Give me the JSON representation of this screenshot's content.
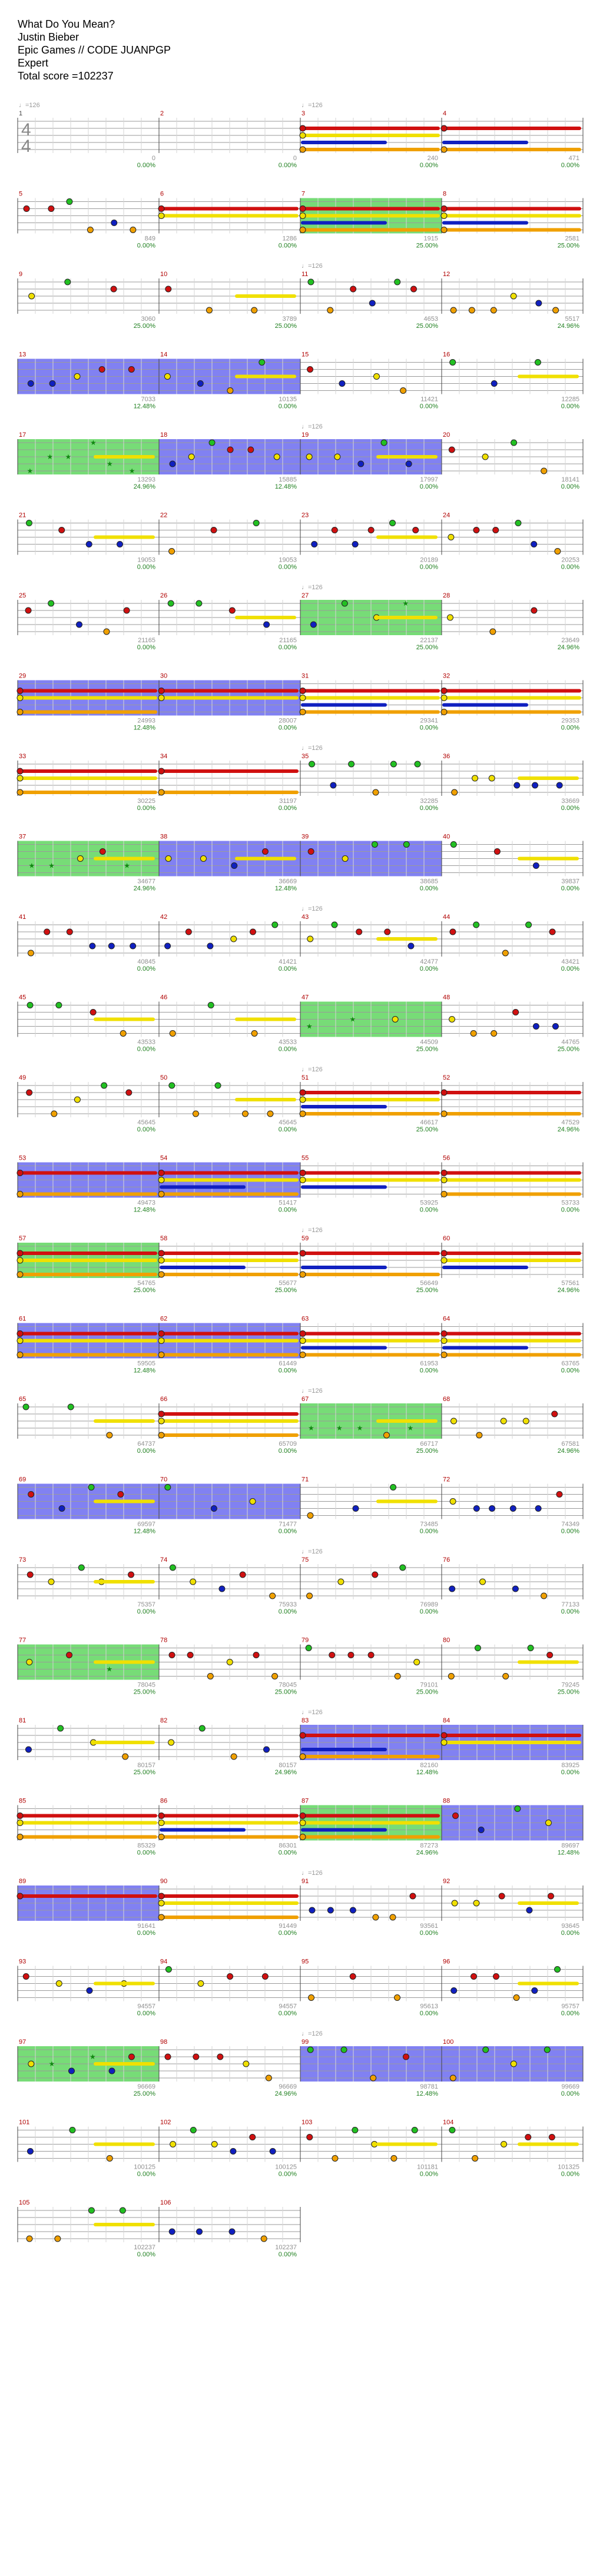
{
  "song": {
    "title": "What Do You Mean?",
    "artist": "Justin Bieber",
    "album": "Epic Games // CODE JUANPGP",
    "difficulty": "Expert",
    "total_score_label": "Total score =",
    "total_score": "102237"
  },
  "time_signature": {
    "numerator": "4",
    "denominator": "4"
  },
  "tempo_marker": "♩=126",
  "colors": {
    "green": "#22c022",
    "red": "#d01010",
    "yellow": "#f0e000",
    "blue": "#1020c0",
    "orange": "#f0a000",
    "overdrive": "#5fd65f",
    "solo": "#6b6bf0",
    "measure_number": "#b00000",
    "score": "#909090",
    "percent": "#208020"
  },
  "measures": [
    {
      "n": "1",
      "s": "0",
      "p": "0.00%"
    },
    {
      "n": "2",
      "s": "0",
      "p": "0.00%"
    },
    {
      "n": "3",
      "s": "240",
      "p": "0.00%"
    },
    {
      "n": "4",
      "s": "471",
      "p": "0.00%"
    },
    {
      "n": "5",
      "s": "849",
      "p": "0.00%"
    },
    {
      "n": "6",
      "s": "1286",
      "p": "0.00%"
    },
    {
      "n": "7",
      "s": "1915",
      "p": "25.00%"
    },
    {
      "n": "8",
      "s": "2581",
      "p": "25.00%"
    },
    {
      "n": "9",
      "s": "3060",
      "p": "25.00%"
    },
    {
      "n": "10",
      "s": "3789",
      "p": "25.00%"
    },
    {
      "n": "11",
      "s": "4653",
      "p": "25.00%"
    },
    {
      "n": "12",
      "s": "5517",
      "p": "24.96%"
    },
    {
      "n": "13",
      "s": "7033",
      "p": "12.48%"
    },
    {
      "n": "14",
      "s": "10135",
      "p": "0.00%"
    },
    {
      "n": "15",
      "s": "11421",
      "p": "0.00%"
    },
    {
      "n": "16",
      "s": "12285",
      "p": "0.00%"
    },
    {
      "n": "17",
      "s": "13293",
      "p": "24.96%"
    },
    {
      "n": "18",
      "s": "15885",
      "p": "12.48%"
    },
    {
      "n": "19",
      "s": "17997",
      "p": "0.00%"
    },
    {
      "n": "20",
      "s": "18141",
      "p": "0.00%"
    },
    {
      "n": "21",
      "s": "19053",
      "p": "0.00%"
    },
    {
      "n": "22",
      "s": "19053",
      "p": "0.00%"
    },
    {
      "n": "23",
      "s": "20189",
      "p": "0.00%"
    },
    {
      "n": "24",
      "s": "20253",
      "p": "0.00%"
    },
    {
      "n": "25",
      "s": "21165",
      "p": "0.00%"
    },
    {
      "n": "26",
      "s": "21165",
      "p": "0.00%"
    },
    {
      "n": "27",
      "s": "22137",
      "p": "25.00%"
    },
    {
      "n": "28",
      "s": "23649",
      "p": "24.96%"
    },
    {
      "n": "29",
      "s": "24993",
      "p": "12.48%"
    },
    {
      "n": "30",
      "s": "28007",
      "p": "0.00%"
    },
    {
      "n": "31",
      "s": "29341",
      "p": "0.00%"
    },
    {
      "n": "32",
      "s": "29353",
      "p": "0.00%"
    },
    {
      "n": "33",
      "s": "30225",
      "p": "0.00%"
    },
    {
      "n": "34",
      "s": "31197",
      "p": "0.00%"
    },
    {
      "n": "35",
      "s": "32285",
      "p": "0.00%"
    },
    {
      "n": "36",
      "s": "33669",
      "p": "0.00%"
    },
    {
      "n": "37",
      "s": "34677",
      "p": "24.96%"
    },
    {
      "n": "38",
      "s": "36669",
      "p": "12.48%"
    },
    {
      "n": "39",
      "s": "38685",
      "p": "0.00%"
    },
    {
      "n": "40",
      "s": "39837",
      "p": "0.00%"
    },
    {
      "n": "41",
      "s": "40845",
      "p": "0.00%"
    },
    {
      "n": "42",
      "s": "41421",
      "p": "0.00%"
    },
    {
      "n": "43",
      "s": "42477",
      "p": "0.00%"
    },
    {
      "n": "44",
      "s": "43421",
      "p": "0.00%"
    },
    {
      "n": "45",
      "s": "43533",
      "p": "0.00%"
    },
    {
      "n": "46",
      "s": "43533",
      "p": "0.00%"
    },
    {
      "n": "47",
      "s": "44509",
      "p": "25.00%"
    },
    {
      "n": "48",
      "s": "44765",
      "p": "25.00%"
    },
    {
      "n": "49",
      "s": "45645",
      "p": "0.00%"
    },
    {
      "n": "50",
      "s": "45645",
      "p": "0.00%"
    },
    {
      "n": "51",
      "s": "46617",
      "p": "25.00%"
    },
    {
      "n": "52",
      "s": "47529",
      "p": "24.96%"
    },
    {
      "n": "53",
      "s": "49473",
      "p": "12.48%"
    },
    {
      "n": "54",
      "s": "51417",
      "p": "0.00%"
    },
    {
      "n": "55",
      "s": "53925",
      "p": "0.00%"
    },
    {
      "n": "56",
      "s": "53733",
      "p": "0.00%"
    },
    {
      "n": "57",
      "s": "54765",
      "p": "25.00%"
    },
    {
      "n": "58",
      "s": "55677",
      "p": "25.00%"
    },
    {
      "n": "59",
      "s": "56649",
      "p": "25.00%"
    },
    {
      "n": "60",
      "s": "57561",
      "p": "24.96%"
    },
    {
      "n": "61",
      "s": "59505",
      "p": "12.48%"
    },
    {
      "n": "62",
      "s": "61449",
      "p": "0.00%"
    },
    {
      "n": "63",
      "s": "61953",
      "p": "0.00%"
    },
    {
      "n": "64",
      "s": "63765",
      "p": "0.00%"
    },
    {
      "n": "65",
      "s": "64737",
      "p": "0.00%"
    },
    {
      "n": "66",
      "s": "65709",
      "p": "0.00%"
    },
    {
      "n": "67",
      "s": "66717",
      "p": "25.00%"
    },
    {
      "n": "68",
      "s": "67581",
      "p": "24.96%"
    },
    {
      "n": "69",
      "s": "69597",
      "p": "12.48%"
    },
    {
      "n": "70",
      "s": "71477",
      "p": "0.00%"
    },
    {
      "n": "71",
      "s": "73485",
      "p": "0.00%"
    },
    {
      "n": "72",
      "s": "74349",
      "p": "0.00%"
    },
    {
      "n": "73",
      "s": "75357",
      "p": "0.00%"
    },
    {
      "n": "74",
      "s": "75933",
      "p": "0.00%"
    },
    {
      "n": "75",
      "s": "76989",
      "p": "0.00%"
    },
    {
      "n": "76",
      "s": "77133",
      "p": "0.00%"
    },
    {
      "n": "77",
      "s": "78045",
      "p": "25.00%"
    },
    {
      "n": "78",
      "s": "78045",
      "p": "25.00%"
    },
    {
      "n": "79",
      "s": "79101",
      "p": "25.00%"
    },
    {
      "n": "80",
      "s": "79245",
      "p": "25.00%"
    },
    {
      "n": "81",
      "s": "80157",
      "p": "25.00%"
    },
    {
      "n": "82",
      "s": "80157",
      "p": "24.96%"
    },
    {
      "n": "83",
      "s": "82160",
      "p": "12.48%"
    },
    {
      "n": "84",
      "s": "83925",
      "p": "0.00%"
    },
    {
      "n": "85",
      "s": "85329",
      "p": "0.00%"
    },
    {
      "n": "86",
      "s": "86301",
      "p": "0.00%"
    },
    {
      "n": "87",
      "s": "87273",
      "p": "24.96%"
    },
    {
      "n": "88",
      "s": "89697",
      "p": "12.48%"
    },
    {
      "n": "89",
      "s": "91641",
      "p": "0.00%"
    },
    {
      "n": "90",
      "s": "91449",
      "p": "0.00%"
    },
    {
      "n": "91",
      "s": "93561",
      "p": "0.00%"
    },
    {
      "n": "92",
      "s": "93645",
      "p": "0.00%"
    },
    {
      "n": "93",
      "s": "94557",
      "p": "0.00%"
    },
    {
      "n": "94",
      "s": "94557",
      "p": "0.00%"
    },
    {
      "n": "95",
      "s": "95613",
      "p": "0.00%"
    },
    {
      "n": "96",
      "s": "95757",
      "p": "0.00%"
    },
    {
      "n": "97",
      "s": "96669",
      "p": "25.00%"
    },
    {
      "n": "98",
      "s": "96669",
      "p": "24.96%"
    },
    {
      "n": "99",
      "s": "98781",
      "p": "12.48%"
    },
    {
      "n": "100",
      "s": "99669",
      "p": "0.00%"
    },
    {
      "n": "101",
      "s": "100125",
      "p": "0.00%"
    },
    {
      "n": "102",
      "s": "100125",
      "p": "0.00%"
    },
    {
      "n": "103",
      "s": "101181",
      "p": "0.00%"
    },
    {
      "n": "104",
      "s": "101325",
      "p": "0.00%"
    },
    {
      "n": "105",
      "s": "102237",
      "p": "0.00%"
    },
    {
      "n": "106",
      "s": "102237",
      "p": "0.00%"
    }
  ],
  "tempo_marks_at": [
    "3",
    "11",
    "19",
    "27",
    "35",
    "43",
    "51",
    "59",
    "67",
    "75",
    "83",
    "91",
    "99"
  ],
  "overdrive_measures": [
    "7",
    "17",
    "27",
    "37",
    "47",
    "57",
    "67",
    "77",
    "87",
    "97"
  ],
  "solo_measures": [
    "13",
    "14",
    "18",
    "19",
    "29",
    "30",
    "38",
    "39",
    "53",
    "54",
    "61",
    "62",
    "69",
    "70",
    "83",
    "84",
    "88",
    "89",
    "99",
    "100"
  ],
  "dense_measures": [
    "3",
    "4",
    "6",
    "7",
    "8",
    "29",
    "30",
    "31",
    "32",
    "33",
    "34",
    "51",
    "52",
    "53",
    "54",
    "55",
    "56",
    "57",
    "58",
    "59",
    "60",
    "61",
    "62",
    "63",
    "64",
    "66",
    "83",
    "84",
    "85",
    "86",
    "87",
    "89",
    "90"
  ]
}
